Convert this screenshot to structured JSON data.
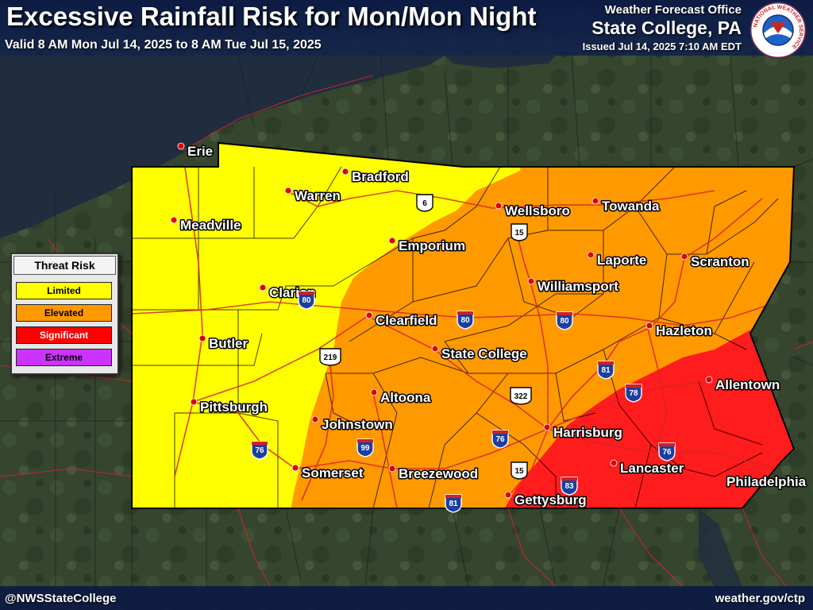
{
  "header": {
    "title": "Excessive Rainfall Risk for Mon/Mon Night",
    "valid": "Valid 8 AM Mon Jul 14, 2025 to 8 AM Tue Jul 15, 2025",
    "office": "Weather Forecast Office",
    "location": "State College, PA",
    "issued": "Issued Jul 14, 2025 7:10 AM EDT",
    "logo_text": "NATIONAL WEATHER SERVICE"
  },
  "legend": {
    "title": "Threat Risk",
    "items": [
      {
        "label": "Limited",
        "color": "#ffff00",
        "text_color": "#000000"
      },
      {
        "label": "Elevated",
        "color": "#ff9900",
        "text_color": "#000000"
      },
      {
        "label": "Significant",
        "color": "#ff0000",
        "text_color": "#ffffff"
      },
      {
        "label": "Extreme",
        "color": "#cc33ff",
        "text_color": "#000000"
      }
    ]
  },
  "risk_zones": {
    "limited_color": "#ffff00",
    "elevated_color": "#ff9900",
    "significant_color": "#ff1a1a",
    "boundary_color": "#000000",
    "road_color": "#d8242b",
    "lake_color": "#1f2d3f"
  },
  "cities": [
    {
      "name": "Erie"
    },
    {
      "name": "Bradford"
    },
    {
      "name": "Warren"
    },
    {
      "name": "Meadville"
    },
    {
      "name": "Wellsboro"
    },
    {
      "name": "Towanda"
    },
    {
      "name": "Emporium"
    },
    {
      "name": "Laporte"
    },
    {
      "name": "Scranton"
    },
    {
      "name": "Clarion"
    },
    {
      "name": "Williamsport"
    },
    {
      "name": "Clearfield"
    },
    {
      "name": "Hazleton"
    },
    {
      "name": "Butler"
    },
    {
      "name": "State College"
    },
    {
      "name": "Allentown"
    },
    {
      "name": "Altoona"
    },
    {
      "name": "Pittsburgh"
    },
    {
      "name": "Johnstown"
    },
    {
      "name": "Harrisburg"
    },
    {
      "name": "Lancaster"
    },
    {
      "name": "Somerset"
    },
    {
      "name": "Breezewood"
    },
    {
      "name": "Philadelphia"
    },
    {
      "name": "Gettysburg"
    }
  ],
  "highways": [
    {
      "number": "6",
      "type": "us"
    },
    {
      "number": "15",
      "type": "us"
    },
    {
      "number": "80",
      "type": "interstate"
    },
    {
      "number": "80",
      "type": "interstate"
    },
    {
      "number": "80",
      "type": "interstate"
    },
    {
      "number": "219",
      "type": "us"
    },
    {
      "number": "81",
      "type": "interstate"
    },
    {
      "number": "78",
      "type": "interstate"
    },
    {
      "number": "322",
      "type": "us"
    },
    {
      "number": "76",
      "type": "interstate"
    },
    {
      "number": "76",
      "type": "interstate"
    },
    {
      "number": "76",
      "type": "interstate"
    },
    {
      "number": "99",
      "type": "interstate"
    },
    {
      "number": "15",
      "type": "us"
    },
    {
      "number": "83",
      "type": "interstate"
    },
    {
      "number": "81",
      "type": "interstate"
    }
  ],
  "footer": {
    "handle": "@NWSStateCollege",
    "website": "weather.gov/ctp"
  }
}
